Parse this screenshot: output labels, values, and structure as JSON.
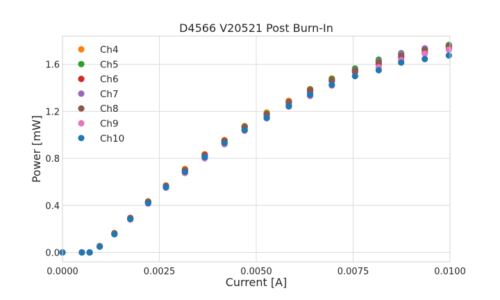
{
  "chart_data": {
    "type": "scatter",
    "title": "D4566 V20521 Post Burn-In",
    "xlabel": "Current [A]",
    "ylabel": "Power [mW]",
    "xlim": [
      0.0,
      0.01
    ],
    "ylim": [
      -0.08,
      1.84
    ],
    "xticks": [
      0.0,
      0.0025,
      0.005,
      0.0075,
      0.01
    ],
    "xtick_labels": [
      "0.0000",
      "0.0025",
      "0.0050",
      "0.0075",
      "0.0100"
    ],
    "yticks": [
      0.0,
      0.4,
      0.8,
      1.2,
      1.6
    ],
    "ytick_labels": [
      "0.0",
      "0.4",
      "0.8",
      "1.2",
      "1.6"
    ],
    "grid": true,
    "legend_position": "top-left",
    "series": [
      {
        "name": "Ch4",
        "color": "#ff7f0e",
        "x": [
          0.0,
          0.0005,
          0.0007,
          0.00096,
          0.00134,
          0.00175,
          0.00221,
          0.00267,
          0.00316,
          0.00367,
          0.00418,
          0.0047,
          0.00527,
          0.00584,
          0.00639,
          0.00695,
          0.00755,
          0.00816,
          0.00874,
          0.00935,
          0.00997
        ],
        "y": [
          0.0,
          0.0,
          0.0,
          0.055,
          0.165,
          0.295,
          0.435,
          0.57,
          0.71,
          0.835,
          0.955,
          1.075,
          1.19,
          1.29,
          1.39,
          1.48,
          1.56,
          1.625,
          1.68,
          1.725,
          1.755
        ]
      },
      {
        "name": "Ch5",
        "color": "#2ca02c",
        "x": [
          0.0,
          0.0005,
          0.0007,
          0.00096,
          0.00134,
          0.00175,
          0.00221,
          0.00267,
          0.00316,
          0.00367,
          0.00418,
          0.0047,
          0.00527,
          0.00584,
          0.00639,
          0.00695,
          0.00755,
          0.00816,
          0.00874,
          0.00935,
          0.00997
        ],
        "y": [
          0.0,
          0.0,
          0.0,
          0.05,
          0.16,
          0.29,
          0.43,
          0.565,
          0.7,
          0.83,
          0.95,
          1.07,
          1.18,
          1.28,
          1.385,
          1.475,
          1.565,
          1.64,
          1.695,
          1.735,
          1.765
        ]
      },
      {
        "name": "Ch6",
        "color": "#d62728",
        "x": [
          0.0,
          0.0005,
          0.0007,
          0.00096,
          0.00134,
          0.00175,
          0.00221,
          0.00267,
          0.00316,
          0.00367,
          0.00418,
          0.0047,
          0.00527,
          0.00584,
          0.00639,
          0.00695,
          0.00755,
          0.00816,
          0.00874,
          0.00935,
          0.00997
        ],
        "y": [
          0.0,
          0.0,
          0.0,
          0.05,
          0.16,
          0.29,
          0.43,
          0.565,
          0.7,
          0.83,
          0.95,
          1.065,
          1.17,
          1.27,
          1.37,
          1.46,
          1.535,
          1.6,
          1.655,
          1.7,
          1.735
        ]
      },
      {
        "name": "Ch7",
        "color": "#9467bd",
        "x": [
          0.0,
          0.0005,
          0.0007,
          0.00096,
          0.00134,
          0.00175,
          0.00221,
          0.00267,
          0.00316,
          0.00367,
          0.00418,
          0.0047,
          0.00527,
          0.00584,
          0.00639,
          0.00695,
          0.00755,
          0.00816,
          0.00874,
          0.00935,
          0.00997
        ],
        "y": [
          0.0,
          0.0,
          0.0,
          0.05,
          0.155,
          0.285,
          0.42,
          0.555,
          0.69,
          0.81,
          0.935,
          1.045,
          1.15,
          1.255,
          1.355,
          1.455,
          1.55,
          1.625,
          1.69,
          1.735,
          1.755
        ]
      },
      {
        "name": "Ch8",
        "color": "#8c564b",
        "x": [
          0.0,
          0.0005,
          0.0007,
          0.00096,
          0.00134,
          0.00175,
          0.00221,
          0.00267,
          0.00316,
          0.00367,
          0.00418,
          0.0047,
          0.00527,
          0.00584,
          0.00639,
          0.00695,
          0.00755,
          0.00816,
          0.00874,
          0.00935,
          0.00997
        ],
        "y": [
          0.0,
          0.0,
          0.0,
          0.05,
          0.16,
          0.29,
          0.43,
          0.565,
          0.695,
          0.825,
          0.945,
          1.065,
          1.175,
          1.28,
          1.38,
          1.465,
          1.545,
          1.615,
          1.67,
          1.72,
          1.755
        ]
      },
      {
        "name": "Ch9",
        "color": "#e377c2",
        "x": [
          0.0,
          0.0005,
          0.0007,
          0.00096,
          0.00134,
          0.00175,
          0.00221,
          0.00267,
          0.00316,
          0.00367,
          0.00418,
          0.0047,
          0.00527,
          0.00584,
          0.00639,
          0.00695,
          0.00755,
          0.00816,
          0.00874,
          0.00935,
          0.00997
        ],
        "y": [
          0.0,
          0.0,
          0.0,
          0.05,
          0.155,
          0.28,
          0.415,
          0.55,
          0.675,
          0.8,
          0.92,
          1.035,
          1.14,
          1.24,
          1.33,
          1.42,
          1.5,
          1.575,
          1.635,
          1.69,
          1.725
        ]
      },
      {
        "name": "Ch10",
        "color": "#1f77b4",
        "x": [
          0.0,
          0.0005,
          0.0007,
          0.00096,
          0.00134,
          0.00175,
          0.00221,
          0.00267,
          0.00316,
          0.00367,
          0.00418,
          0.0047,
          0.00527,
          0.00584,
          0.00639,
          0.00695,
          0.00755,
          0.00816,
          0.00874,
          0.00935,
          0.00997
        ],
        "y": [
          0.0,
          0.0,
          0.0,
          0.05,
          0.155,
          0.285,
          0.42,
          0.555,
          0.685,
          0.81,
          0.93,
          1.04,
          1.145,
          1.245,
          1.34,
          1.425,
          1.5,
          1.55,
          1.615,
          1.645,
          1.675
        ]
      }
    ]
  }
}
